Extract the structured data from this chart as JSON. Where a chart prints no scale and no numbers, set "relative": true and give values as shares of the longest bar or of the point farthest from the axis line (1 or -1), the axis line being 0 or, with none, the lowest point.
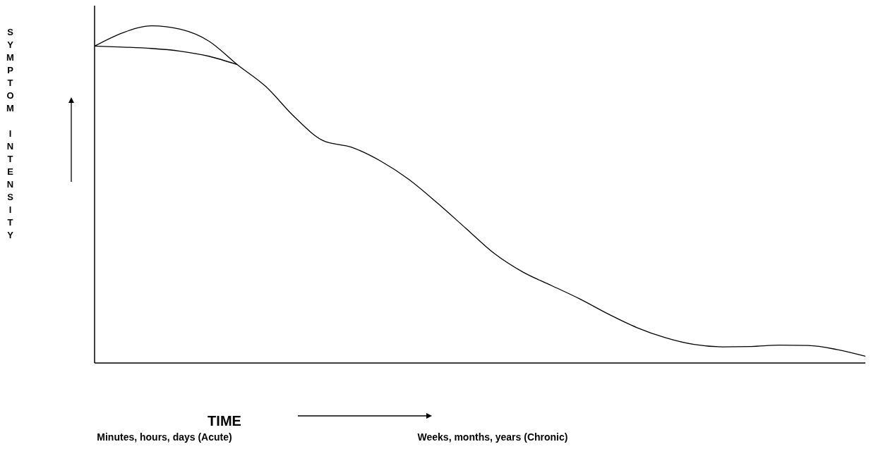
{
  "chart_data": {
    "type": "line",
    "relative": true,
    "xlabel": "TIME",
    "categories": [
      null,
      null,
      null,
      null,
      null,
      null,
      null,
      null,
      null,
      null,
      null,
      null,
      null,
      null,
      null,
      null,
      null,
      null,
      null,
      null,
      null,
      null,
      null,
      null,
      null,
      null,
      null,
      null
    ],
    "series": [
      {
        "color": "#000000",
        "values": [
          0.94,
          0.98,
          1.0,
          0.99,
          0.955,
          0.885,
          0.82,
          0.73,
          0.66,
          0.64,
          0.6,
          0.545,
          0.475,
          0.4,
          0.325,
          0.27,
          0.23,
          0.19,
          0.145,
          0.105,
          0.075,
          0.055,
          0.048,
          0.049,
          0.053,
          0.052,
          0.04,
          0.02
        ]
      },
      {
        "color": "#000000",
        "values": [
          0.94,
          0.937,
          0.933,
          0.925,
          0.91,
          0.885,
          null,
          null,
          null,
          null,
          null,
          null,
          null,
          null,
          null,
          null,
          null,
          null,
          null,
          null,
          null,
          null,
          null,
          null,
          null,
          null,
          null,
          null
        ]
      }
    ],
    "annotations": [
      "SYMPTOM INTENSITY",
      "Minutes, hours, days (Acute)",
      "Weeks, months, years (Chronic)"
    ],
    "marker": "none",
    "line_style": "solid"
  }
}
